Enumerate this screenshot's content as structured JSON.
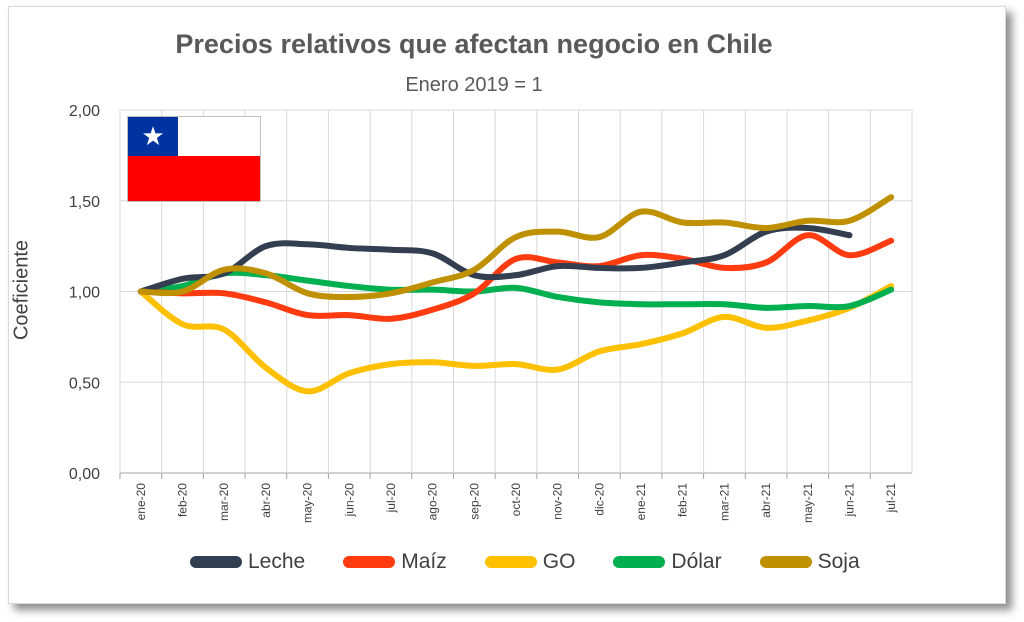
{
  "chart_data": {
    "type": "line",
    "title": "Precios relativos que afectan negocio en Chile",
    "subtitle": "Enero 2019 = 1",
    "ylabel": "Coeficiente",
    "ylim": [
      0,
      2
    ],
    "yticks": [
      "0,00",
      "0,50",
      "1,00",
      "1,50",
      "2,00"
    ],
    "ytick_values": [
      0,
      0.5,
      1.0,
      1.5,
      2.0
    ],
    "grid": true,
    "legend_position": "bottom",
    "categories": [
      "ene-20",
      "feb-20",
      "mar-20",
      "abr-20",
      "may-20",
      "jun-20",
      "jul-20",
      "ago-20",
      "sep-20",
      "oct-20",
      "nov-20",
      "dic-20",
      "ene-21",
      "feb-21",
      "mar-21",
      "abr-21",
      "may-21",
      "jun-21",
      "jul-21"
    ],
    "series": [
      {
        "name": "Leche",
        "color": "#333f50",
        "values": [
          1.0,
          1.07,
          1.1,
          1.25,
          1.26,
          1.24,
          1.23,
          1.21,
          1.09,
          1.09,
          1.14,
          1.13,
          1.13,
          1.16,
          1.2,
          1.33,
          1.35,
          1.31,
          null
        ]
      },
      {
        "name": "Maíz",
        "color": "#ff3b0f",
        "values": [
          1.0,
          0.99,
          0.99,
          0.94,
          0.87,
          0.87,
          0.85,
          0.9,
          0.99,
          1.18,
          1.16,
          1.14,
          1.2,
          1.18,
          1.13,
          1.16,
          1.31,
          1.2,
          1.28
        ]
      },
      {
        "name": "GO",
        "color": "#ffc000",
        "values": [
          1.0,
          0.82,
          0.79,
          0.58,
          0.45,
          0.55,
          0.6,
          0.61,
          0.59,
          0.6,
          0.57,
          0.67,
          0.71,
          0.77,
          0.86,
          0.8,
          0.84,
          0.91,
          1.03
        ]
      },
      {
        "name": "Dólar",
        "color": "#00b050",
        "values": [
          1.0,
          1.03,
          1.1,
          1.09,
          1.06,
          1.03,
          1.01,
          1.01,
          1.0,
          1.02,
          0.97,
          0.94,
          0.93,
          0.93,
          0.93,
          0.91,
          0.92,
          0.92,
          1.01
        ]
      },
      {
        "name": "Soja",
        "color": "#bf9000",
        "values": [
          1.0,
          1.0,
          1.12,
          1.1,
          0.99,
          0.97,
          0.99,
          1.05,
          1.12,
          1.3,
          1.33,
          1.3,
          1.44,
          1.38,
          1.38,
          1.35,
          1.39,
          1.39,
          1.52
        ]
      }
    ]
  },
  "flag": {
    "name": "chile-flag-icon",
    "colors": [
      "#0033a0",
      "#ffffff",
      "#ff0000"
    ]
  }
}
